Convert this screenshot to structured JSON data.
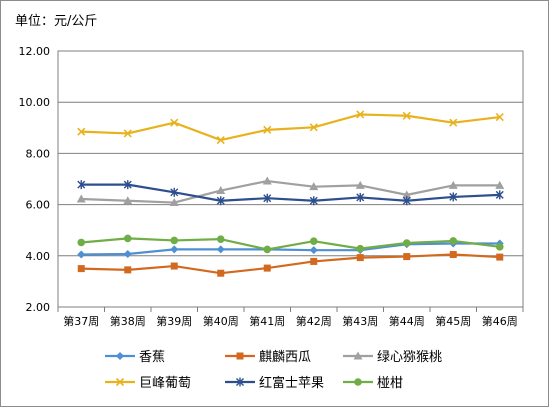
{
  "unit_label": "单位：元/公斤",
  "chart_data": {
    "type": "line",
    "title": "",
    "xlabel": "",
    "ylabel": "",
    "unit": "单位：元/公斤",
    "categories": [
      "第37周",
      "第38周",
      "第39周",
      "第40周",
      "第41周",
      "第42周",
      "第43周",
      "第44周",
      "第45周",
      "第46周"
    ],
    "ylim": [
      2,
      12
    ],
    "yticks": [
      "2.00",
      "4.00",
      "6.00",
      "8.00",
      "10.00",
      "12.00"
    ],
    "grid": true,
    "legend": "bottom",
    "series": [
      {
        "name": "香蕉",
        "color": "#4f8fd3",
        "marker": "diamond",
        "values": [
          4.05,
          4.07,
          4.25,
          4.25,
          4.25,
          4.22,
          4.22,
          4.45,
          4.48,
          4.48
        ]
      },
      {
        "name": "麒麟西瓜",
        "color": "#d2691e",
        "marker": "square",
        "values": [
          3.5,
          3.45,
          3.6,
          3.32,
          3.52,
          3.78,
          3.93,
          3.97,
          4.05,
          3.95
        ]
      },
      {
        "name": "绿心猕猴桃",
        "color": "#a0a0a0",
        "marker": "triangle",
        "values": [
          6.22,
          6.15,
          6.08,
          6.55,
          6.92,
          6.7,
          6.75,
          6.38,
          6.75,
          6.75
        ]
      },
      {
        "name": "巨峰葡萄",
        "color": "#e8b21e",
        "marker": "x",
        "values": [
          8.85,
          8.78,
          9.2,
          8.52,
          8.92,
          9.02,
          9.52,
          9.47,
          9.2,
          9.42
        ]
      },
      {
        "name": "红富士苹果",
        "color": "#2d4f8e",
        "marker": "star",
        "values": [
          6.78,
          6.78,
          6.48,
          6.15,
          6.25,
          6.15,
          6.28,
          6.15,
          6.3,
          6.38
        ]
      },
      {
        "name": "椪柑",
        "color": "#70ad47",
        "marker": "circle",
        "values": [
          4.52,
          4.68,
          4.6,
          4.65,
          4.25,
          4.57,
          4.28,
          4.5,
          4.58,
          4.35
        ]
      }
    ]
  }
}
